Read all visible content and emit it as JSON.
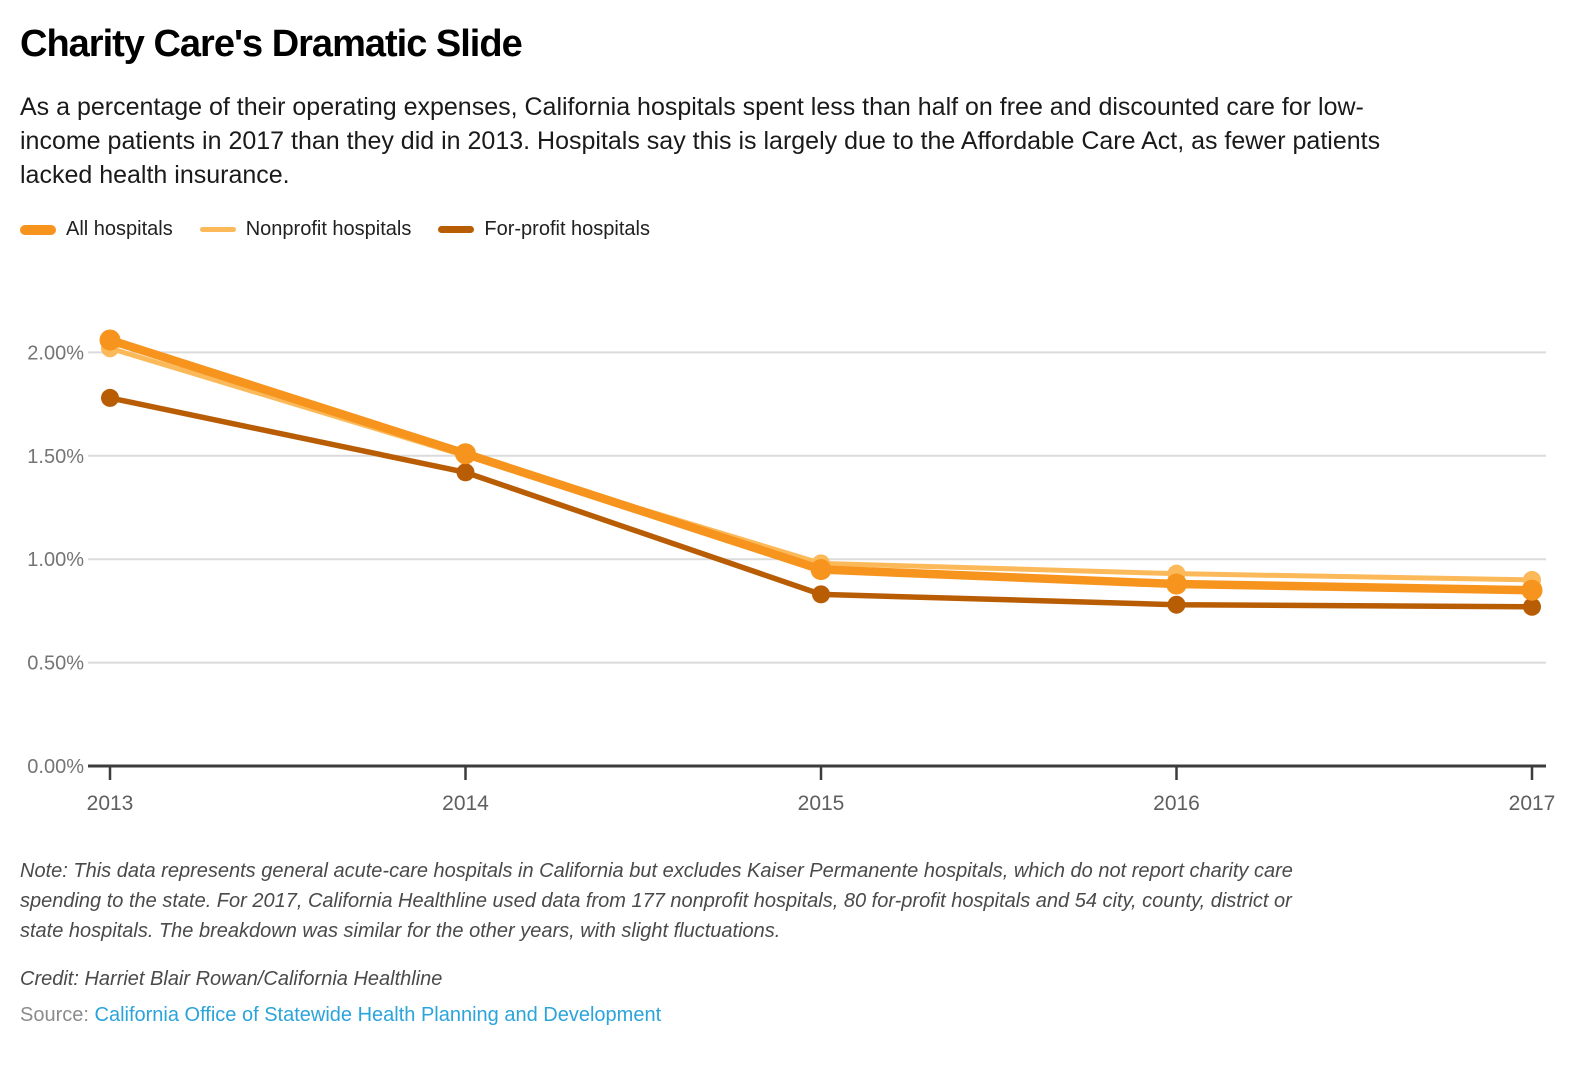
{
  "title": "Charity Care's Dramatic Slide",
  "subtitle": "As a percentage of their operating expenses, California hospitals spent less than half on free and discounted care for low-\nincome patients in 2017 than they did in 2013. Hospitals say this is largely due to the Affordable Care Act, as fewer patients\nlacked health insurance.",
  "note": "Note: This data represents general acute-care hospitals in California but excludes Kaiser Permanente hospitals, which do not report charity care\nspending to the state. For 2017, California Healthline used data from 177 nonprofit hospitals, 80 for-profit hospitals and 54 city, county, district or\nstate hospitals. The breakdown was similar for the other years, with slight fluctuations.",
  "credit": "Credit: Harriet Blair Rowan/California Healthline",
  "source_label": "Source:",
  "source_link": "California Office of Statewide Health Planning and Development",
  "colors": {
    "all": "#F7941E",
    "nonprofit": "#FBB95A",
    "forprofit": "#B95D05",
    "link": "#2BA4DB",
    "grid": "#DBDBDB",
    "axis": "#3C3C3C",
    "ytick_label": "#757575",
    "xtick_label": "#5F5F5F"
  },
  "chart_data": {
    "type": "line",
    "x": [
      "2013",
      "2014",
      "2015",
      "2016",
      "2017"
    ],
    "series": [
      {
        "name": "All hospitals",
        "key": "all",
        "values": [
          2.06,
          1.51,
          0.95,
          0.88,
          0.85
        ]
      },
      {
        "name": "Nonprofit hospitals",
        "key": "nonprofit",
        "values": [
          2.02,
          1.5,
          0.98,
          0.93,
          0.9
        ]
      },
      {
        "name": "For-profit hospitals",
        "key": "forprofit",
        "values": [
          1.78,
          1.42,
          0.83,
          0.78,
          0.77
        ]
      }
    ],
    "ylabel": "",
    "xlabel": "",
    "ylim": [
      0,
      2.25
    ],
    "yticks": [
      0,
      0.5,
      1.0,
      1.5,
      2.0
    ],
    "ytick_labels": [
      "0.00%",
      "0.50%",
      "1.00%",
      "1.50%",
      "2.00%"
    ],
    "grid": true,
    "legend_position": "top"
  }
}
